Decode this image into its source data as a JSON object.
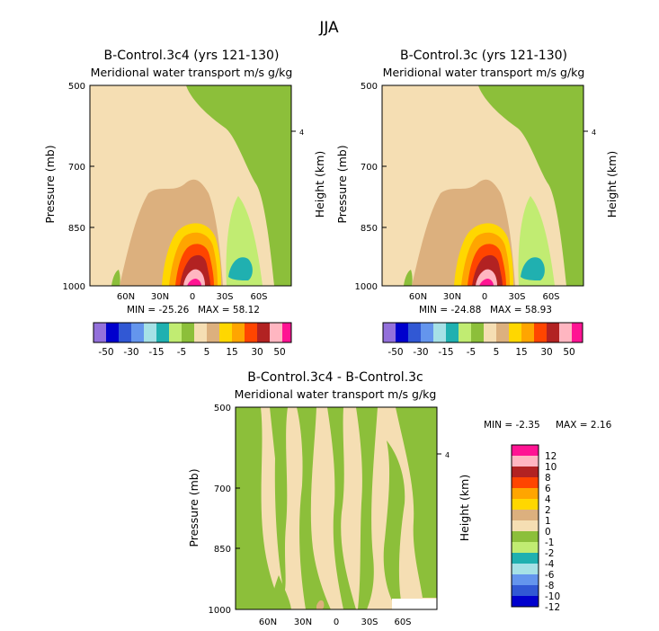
{
  "figure": {
    "season": "JJA"
  },
  "colors": {
    "tan": "#f5deb3",
    "green": "#8cbf3a",
    "light_green": "#c1ec72",
    "teal": "#20b0b0",
    "light_cyan": "#a6e1e6",
    "dark_brown_tan": "#dcb07e",
    "yellow": "#ffd700",
    "orange": "#ffa500",
    "red_orange": "#ff4500",
    "dark_red": "#b22222",
    "pink": "#ffb6c1",
    "magenta": "#ff1493"
  },
  "chart_data": [
    {
      "type": "heatmap",
      "title": "B-Control.3c4 (yrs 121-130)",
      "subtitle": "Meridional water transport m/s g/kg",
      "ylabel": "Pressure (mb)",
      "ylabel_right": "Height (km)",
      "y_ticks": [
        "500",
        "700",
        "850",
        "1000"
      ],
      "x_ticks": [
        "60N",
        "30N",
        "0",
        "30S",
        "60S"
      ],
      "right_ticks": [
        "4"
      ],
      "min_label": "MIN = -25.26",
      "max_label": "MAX = 58.12",
      "min": -25.26,
      "max": 58.12,
      "colorbar_labels": [
        "-50",
        "-30",
        "-15",
        "-5",
        "5",
        "15",
        "30",
        "50"
      ]
    },
    {
      "type": "heatmap",
      "title": "B-Control.3c (yrs 121-130)",
      "subtitle": "Meridional water transport m/s g/kg",
      "ylabel": "Pressure (mb)",
      "ylabel_right": "Height (km)",
      "y_ticks": [
        "500",
        "700",
        "850",
        "1000"
      ],
      "x_ticks": [
        "60N",
        "30N",
        "0",
        "30S",
        "60S"
      ],
      "right_ticks": [
        "4"
      ],
      "min_label": "MIN = -24.88",
      "max_label": "MAX = 58.93",
      "min": -24.88,
      "max": 58.93,
      "colorbar_labels": [
        "-50",
        "-30",
        "-15",
        "-5",
        "5",
        "15",
        "30",
        "50"
      ]
    },
    {
      "type": "heatmap",
      "title": "B-Control.3c4 - B-Control.3c",
      "subtitle": "Meridional water transport m/s g/kg",
      "ylabel": "Pressure (mb)",
      "ylabel_right": "Height (km)",
      "y_ticks": [
        "500",
        "700",
        "850",
        "1000"
      ],
      "x_ticks": [
        "60N",
        "30N",
        "0",
        "30S",
        "60S"
      ],
      "right_ticks": [
        "4"
      ],
      "min_label": "MIN = -2.35",
      "max_label": "MAX = 2.16",
      "min": -2.35,
      "max": 2.16,
      "colorbar_labels": [
        "12",
        "10",
        "8",
        "6",
        "4",
        "2",
        "1",
        "0",
        "-1",
        "-2",
        "-4",
        "-6",
        "-8",
        "-10",
        "-12"
      ]
    }
  ]
}
